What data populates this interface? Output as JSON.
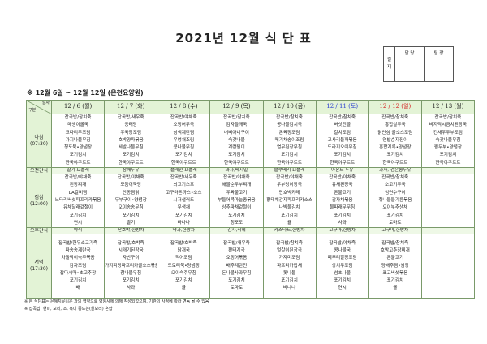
{
  "title": "2021년 12월 식 단 표",
  "approval": {
    "side_label": "결\n재",
    "columns": [
      "담 당",
      "팀 장"
    ]
  },
  "subheading": "※ 12월 6일 ~ 12월 12일 (은천요양원)",
  "corner": {
    "top": "일자",
    "bottom": "구분"
  },
  "row_labels": {
    "breakfast": [
      "아침",
      "(07:30)"
    ],
    "am_snack": "오전간식",
    "lunch": [
      "점심",
      "(12:00)"
    ],
    "pm_snack": "오후간식",
    "dinner": [
      "저녁",
      "(17:30)"
    ]
  },
  "colors": {
    "header_bg": "#e3f3d6",
    "border": "#7a9a6a",
    "saturday": "#2a3fd0",
    "sunday": "#d42020"
  },
  "days": [
    {
      "date": "12 / 6 (월)",
      "color": "#222222",
      "breakfast": [
        "잡곡밥/참치죽",
        "매생이굴국",
        "코다리무조림",
        "가지나물무침",
        "청포묵•양념장",
        "포기김치",
        "한국야쿠르트"
      ],
      "am_snack": "딸기 요플레",
      "lunch": [
        "잡곡밥/야채죽",
        "된장찌개",
        "LA갈비찜",
        "느타리버섯파프리카볶음",
        "유채달래겉절이",
        "포기김치",
        "연시"
      ],
      "pm_snack": "약식",
      "dinner": [
        "잡곡밥/한우소고기죽",
        "파송송계란국",
        "차돌박이숙주볶음",
        "감자조림",
        "잡다시마•초고추장",
        "포기김치",
        "배"
      ]
    },
    {
      "date": "12 / 7 (화)",
      "color": "#222222",
      "breakfast": [
        "잡곡밥/새우죽",
        "동태탕",
        "우육장조림",
        "호박양파볶음",
        "세발나물무침",
        "포기김치",
        "한국야쿠르트"
      ],
      "am_snack": "참깨두유",
      "lunch": [
        "잡곡밥/야채죽",
        "모둠어묵탕",
        "안동찜닭",
        "두부구이•양념장",
        "오이송송무침",
        "포기김치",
        "딸기"
      ],
      "pm_snack": "단호박,한방차",
      "dinner": [
        "잡곡밥/호박죽",
        "시래기된장국",
        "자반구이",
        "가지피망파프리카굴소스볶음",
        "참나물무침",
        "포기김치",
        "사과"
      ]
    },
    {
      "date": "12 / 8 (수)",
      "color": "#222222",
      "breakfast": [
        "잡곡밥/야채죽",
        "오징어무국",
        "삼색계란찜",
        "우엉채조림",
        "콩나물무침",
        "포기김치",
        "한국야쿠르트"
      ],
      "am_snack": "플레인 요플레",
      "lunch": [
        "잡곡밥/새우죽",
        "쇠고기스프",
        "고구마돈까스•소스",
        "시저샐러드",
        "무생채",
        "포기김치",
        "바나나"
      ],
      "pm_snack": "약과,한방차",
      "dinner": [
        "잡곡밥/호박죽",
        "닭개국",
        "적어조림",
        "도토리묵•양념장",
        "오이숙주무침",
        "포기김치",
        "귤"
      ]
    },
    {
      "date": "12 / 9 (목)",
      "color": "#222222",
      "breakfast": [
        "잡곡밥/참치죽",
        "감자들깨국",
        "너비아니구이",
        "숙갓나물",
        "계란찜이",
        "포기김치",
        "한국야쿠르트"
      ],
      "am_snack": "과자,베지밀",
      "lunch": [
        "잡곡밥/야채죽",
        "해물순두부찌개",
        "우육불고기",
        "부들어묵마늘종볶음",
        "상추파채겉절이",
        "포기김치",
        "청포도"
      ],
      "pm_snack": "감자,식혜",
      "dinner": [
        "잡곡밥/새우죽",
        "황태계국",
        "오징어볶음",
        "배추계란전",
        "돈나물사과무침",
        "포기김치",
        "토마토"
      ]
    },
    {
      "date": "12 / 10 (금)",
      "color": "#222222",
      "breakfast": [
        "잡곡밥/참치죽",
        "콩나물김치국",
        "돈육장조림",
        "메기채송이조림",
        "열무된장무침",
        "포기김치",
        "한국야쿠르트"
      ],
      "am_snack": "블루베리 요플레",
      "lunch": [
        "잡곡밥/야채죽",
        "우부렁이장국",
        "단호박카레",
        "황태채감자파프리카소스",
        "나박물김치",
        "포기김치",
        "귤"
      ],
      "pm_snack": "카스타드,한방차",
      "dinner": [
        "잡곡밥/참치죽",
        "얼갈이된장국",
        "가자미조림",
        "파프리카잡채",
        "톳나물",
        "포기김치",
        "바나나"
      ]
    },
    {
      "date": "12 / 11 (토)",
      "color": "#2a3fd0",
      "breakfast": [
        "잡곡밥/참치죽",
        "버섯전골",
        "갈치조림",
        "고사리들깨볶음",
        "도라지오이무침",
        "포기김치",
        "한국야쿠르트"
      ],
      "am_snack": "아몬드 두유",
      "lunch": [
        "잡곡밥/야채죽",
        "유채된장국",
        "돈불고기",
        "감자채볶음",
        "물파래무무침",
        "포기김치",
        "사과"
      ],
      "pm_snack": "고구마,한방차",
      "dinner": [
        "잡곡밥/야채죽",
        "콩나물국",
        "메추리알장조림",
        "상치두조림",
        "섬초나물",
        "포기김치",
        "연시"
      ]
    },
    {
      "date": "12 / 12 (일)",
      "color": "#d42020",
      "breakfast": [
        "잡곡밥/참치죽",
        "홍합살무국",
        "닭안심 굴소스조림",
        "연밥순지짐이",
        "홍합계록•양념장",
        "포기김치",
        "한국야쿠르트"
      ],
      "am_snack": "과자, 검은콩두유",
      "lunch": [
        "잡곡밥/참치죽",
        "소고기무국",
        "임연수구이",
        "취나물들기름볶음",
        "오이부추생채",
        "포기김치",
        "토마토"
      ],
      "pm_snack": "고구마,한방차",
      "dinner": [
        "잡곡밥/참치죽",
        "호박고추장찌개",
        "돈불고기",
        "양배추찜•쌈장",
        "표고버섯볶음",
        "포기김치",
        "귤"
      ]
    },
    {
      "date": "12 / 13 (월)",
      "color": "#222222",
      "breakfast": [
        "잡곡밥/참치죽",
        "바지락시금치된장국",
        "건새우두부조림",
        "숙갓나물무침",
        "찜두부•양념장",
        "포기김치",
        "한국야쿠르트"
      ],
      "am_snack": "",
      "lunch": [],
      "pm_snack": "",
      "dinner": []
    }
  ],
  "notes": [
    "※ 본 식단표는 은혜지유니온 과의 협약으로 영양사에 의해 작성되었으며, 기관의 사정에 따라 변동 될 수 있음",
    "※ 잡곡밥: 현미, 보리, 조, 흑미 중또는(찰보리) 혼합"
  ]
}
